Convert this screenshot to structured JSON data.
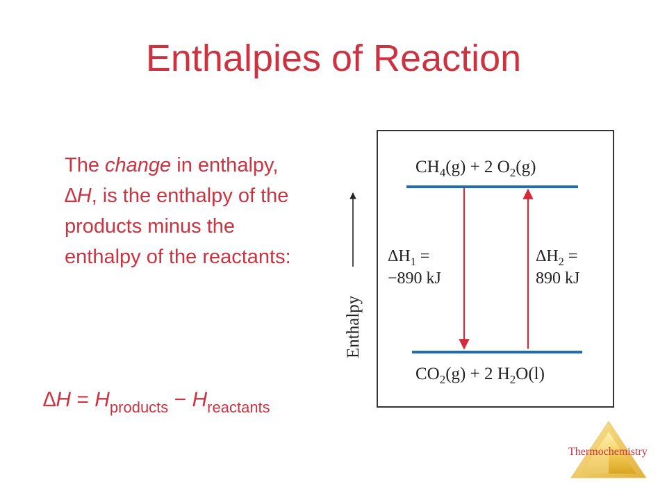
{
  "slide": {
    "title": "Enthalpies of Reaction",
    "para": {
      "pre": "The ",
      "em1": "change",
      "mid1": " in enthalpy, ",
      "em2": "∆H",
      "post": ", is the enthalpy of the products minus the enthalpy of the reactants:"
    },
    "equation": {
      "lhs": "∆H",
      "equals": " = ",
      "h1": "H",
      "sub1": "products",
      "minus": " − ",
      "h2": "H",
      "sub2": "reactants"
    },
    "footer_label": "Thermochemistry"
  },
  "diagram": {
    "axis_label": "Enthalpy",
    "top_state": {
      "base": "CH",
      "sub1": "4",
      "phase1": "(g)",
      "plus": " + 2 O",
      "sub2": "2",
      "phase2": "(g)"
    },
    "bottom_state": {
      "base": "CO",
      "sub1": "2",
      "phase1": "(g)",
      "plus": " + 2 H",
      "sub2": "2",
      "tail": "O(l)"
    },
    "dh1": {
      "sym": "ΔH",
      "sub": "1",
      "eq": " =",
      "value": "−890 kJ"
    },
    "dh2": {
      "sym": "ΔH",
      "sub": "2",
      "eq": " =",
      "value": "890 kJ"
    },
    "colors": {
      "level": "#1f6db5",
      "arrow": "#d42a3c",
      "frame": "#333333"
    }
  }
}
